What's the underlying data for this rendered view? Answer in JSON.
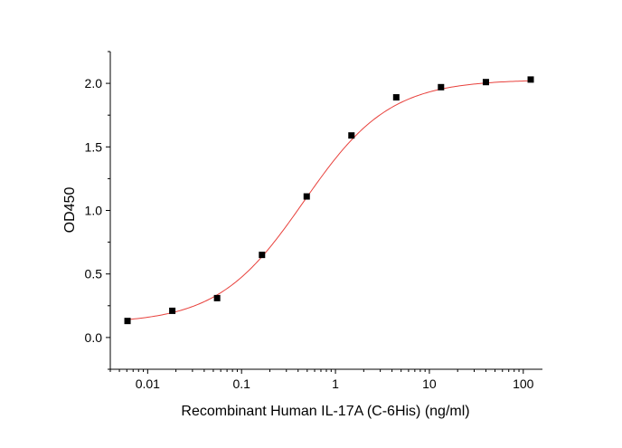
{
  "chart_data": {
    "type": "scatter",
    "xlabel": "Recombinant Human IL-17A (C-6His) (ng/ml)",
    "ylabel": "OD450",
    "x_scale": "log",
    "xlim": [
      0.004,
      160
    ],
    "ylim": [
      -0.25,
      2.25
    ],
    "x_ticks": [
      0.01,
      0.1,
      1,
      10,
      100
    ],
    "x_tick_labels": [
      "0.01",
      "0.1",
      "1",
      "10",
      "100"
    ],
    "y_ticks": [
      0.0,
      0.5,
      1.0,
      1.5,
      2.0
    ],
    "y_tick_labels": [
      "0.0",
      "0.5",
      "1.0",
      "1.5",
      "2.0"
    ],
    "grid": false,
    "series": [
      {
        "style": "markers",
        "marker": "square",
        "color": "#000000",
        "x": [
          0.0061,
          0.0183,
          0.0549,
          0.165,
          0.494,
          1.48,
          4.44,
          13.3,
          40.0,
          120.0
        ],
        "y": [
          0.13,
          0.21,
          0.31,
          0.65,
          1.11,
          1.59,
          1.89,
          1.97,
          2.01,
          2.03
        ]
      },
      {
        "style": "fit-curve",
        "color": "#e8413c",
        "model": "4PL",
        "bottom": 0.11,
        "top": 2.03,
        "ec50": 0.46,
        "hill": 0.95
      }
    ]
  }
}
